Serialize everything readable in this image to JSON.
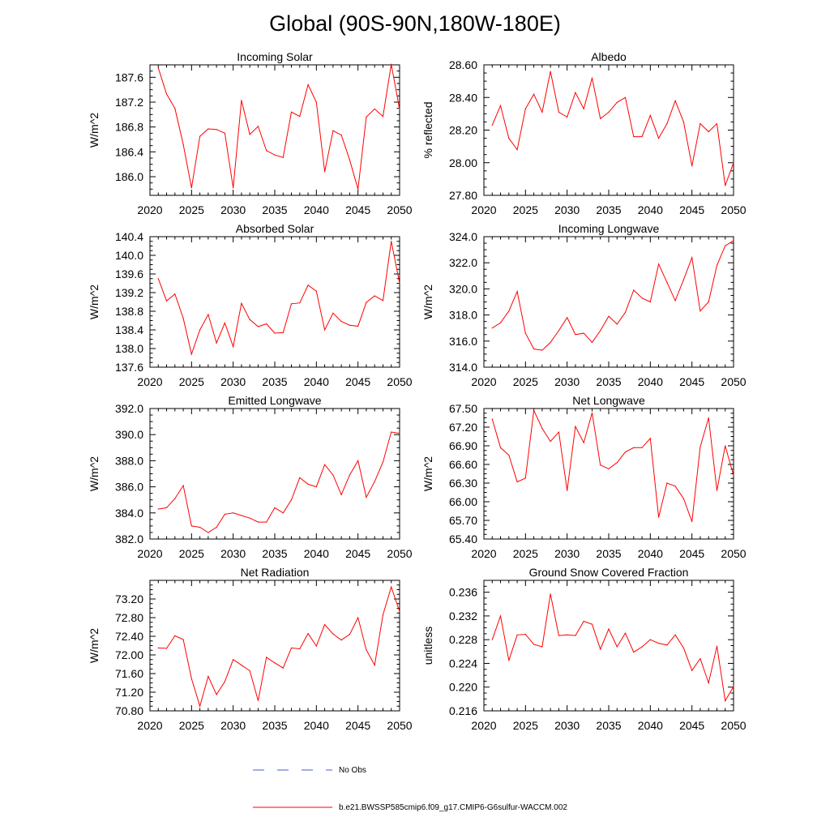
{
  "title": "Global (90S-90N,180W-180E)",
  "legend": {
    "obs_label": "No Obs",
    "obs_color": "#4a5bd6",
    "model_label": "b.e21.BWSSP585cmip6.f09_g17.CMIP6-G6sulfur-WACCM.002",
    "model_color": "#ff0000"
  },
  "chart_data": [
    {
      "type": "line",
      "title": "Incoming Solar",
      "ylabel": "W/m^2",
      "xlim": [
        2020,
        2050
      ],
      "ylim": [
        185.7,
        187.8
      ],
      "xticks": [
        "2020",
        "2025",
        "2030",
        "2035",
        "2040",
        "2045",
        "2050"
      ],
      "yticks": [
        "186.0",
        "186.4",
        "186.8",
        "187.2",
        "187.6"
      ],
      "grid": false,
      "series": [
        {
          "color": "#ff0000",
          "x": [
            2021,
            2022,
            2023,
            2024,
            2025,
            2026,
            2027,
            2028,
            2029,
            2030,
            2031,
            2032,
            2033,
            2034,
            2035,
            2036,
            2037,
            2038,
            2039,
            2040,
            2041,
            2042,
            2043,
            2044,
            2045,
            2046,
            2047,
            2048,
            2049,
            2050
          ],
          "values": [
            187.75,
            187.33,
            187.1,
            186.52,
            185.82,
            186.65,
            186.77,
            186.76,
            186.7,
            185.82,
            187.23,
            186.68,
            186.81,
            186.42,
            186.35,
            186.31,
            187.04,
            186.97,
            187.48,
            187.2,
            186.08,
            186.74,
            186.67,
            186.27,
            185.8,
            186.96,
            187.09,
            186.97,
            187.81,
            187.08
          ]
        }
      ]
    },
    {
      "type": "line",
      "title": "Albedo",
      "ylabel": "% reflected",
      "xlim": [
        2020,
        2050
      ],
      "ylim": [
        27.8,
        28.6
      ],
      "xticks": [
        "2020",
        "2025",
        "2030",
        "2035",
        "2040",
        "2045",
        "2050"
      ],
      "yticks": [
        "27.80",
        "28.00",
        "28.20",
        "28.40",
        "28.60"
      ],
      "grid": false,
      "series": [
        {
          "color": "#ff0000",
          "x": [
            2021,
            2022,
            2023,
            2024,
            2025,
            2026,
            2027,
            2028,
            2029,
            2030,
            2031,
            2032,
            2033,
            2034,
            2035,
            2036,
            2037,
            2038,
            2039,
            2040,
            2041,
            2042,
            2043,
            2044,
            2045,
            2046,
            2047,
            2048,
            2049,
            2050
          ],
          "values": [
            28.23,
            28.35,
            28.15,
            28.08,
            28.33,
            28.42,
            28.31,
            28.56,
            28.31,
            28.28,
            28.43,
            28.33,
            28.52,
            28.27,
            28.31,
            28.37,
            28.4,
            28.16,
            28.16,
            28.29,
            28.15,
            28.24,
            28.38,
            28.25,
            27.98,
            28.24,
            28.19,
            28.24,
            27.86,
            28.0
          ]
        }
      ]
    },
    {
      "type": "line",
      "title": "Absorbed Solar",
      "ylabel": "W/m^2",
      "xlim": [
        2020,
        2050
      ],
      "ylim": [
        137.6,
        140.4
      ],
      "xticks": [
        "2020",
        "2025",
        "2030",
        "2035",
        "2040",
        "2045",
        "2050"
      ],
      "yticks": [
        "137.6",
        "138.0",
        "138.4",
        "138.8",
        "139.2",
        "139.6",
        "140.0",
        "140.4"
      ],
      "grid": false,
      "series": [
        {
          "color": "#ff0000",
          "x": [
            2021,
            2022,
            2023,
            2024,
            2025,
            2026,
            2027,
            2028,
            2029,
            2030,
            2031,
            2032,
            2033,
            2034,
            2035,
            2036,
            2037,
            2038,
            2039,
            2040,
            2041,
            2042,
            2043,
            2044,
            2045,
            2046,
            2047,
            2048,
            2049,
            2050
          ],
          "values": [
            139.5,
            139.02,
            139.17,
            138.65,
            137.88,
            138.4,
            138.73,
            138.12,
            138.55,
            138.04,
            138.97,
            138.62,
            138.47,
            138.53,
            138.33,
            138.34,
            138.96,
            138.98,
            139.36,
            139.23,
            138.4,
            138.76,
            138.58,
            138.5,
            138.48,
            138.99,
            139.13,
            139.03,
            140.3,
            139.4
          ]
        }
      ]
    },
    {
      "type": "line",
      "title": "Incoming Longwave",
      "ylabel": "W/m^2",
      "xlim": [
        2020,
        2050
      ],
      "ylim": [
        314.0,
        324.0
      ],
      "xticks": [
        "2020",
        "2025",
        "2030",
        "2035",
        "2040",
        "2045",
        "2050"
      ],
      "yticks": [
        "314.0",
        "316.0",
        "318.0",
        "320.0",
        "322.0",
        "324.0"
      ],
      "grid": false,
      "series": [
        {
          "color": "#ff0000",
          "x": [
            2021,
            2022,
            2023,
            2024,
            2025,
            2026,
            2027,
            2028,
            2029,
            2030,
            2031,
            2032,
            2033,
            2034,
            2035,
            2036,
            2037,
            2038,
            2039,
            2040,
            2041,
            2042,
            2043,
            2044,
            2045,
            2046,
            2047,
            2048,
            2049,
            2050
          ],
          "values": [
            317.0,
            317.4,
            318.3,
            319.8,
            316.6,
            315.4,
            315.3,
            315.9,
            316.8,
            317.8,
            316.5,
            316.6,
            315.9,
            316.8,
            317.9,
            317.3,
            318.2,
            319.9,
            319.3,
            319.0,
            321.9,
            320.5,
            319.1,
            320.7,
            322.4,
            318.3,
            319.0,
            321.8,
            323.3,
            323.7
          ]
        }
      ]
    },
    {
      "type": "line",
      "title": "Emitted Longwave",
      "ylabel": "W/m^2",
      "xlim": [
        2020,
        2050
      ],
      "ylim": [
        382.0,
        392.0
      ],
      "xticks": [
        "2020",
        "2025",
        "2030",
        "2035",
        "2040",
        "2045",
        "2050"
      ],
      "yticks": [
        "382.0",
        "384.0",
        "386.0",
        "388.0",
        "390.0",
        "392.0"
      ],
      "grid": false,
      "series": [
        {
          "color": "#ff0000",
          "x": [
            2021,
            2022,
            2023,
            2024,
            2025,
            2026,
            2027,
            2028,
            2029,
            2030,
            2031,
            2032,
            2033,
            2034,
            2035,
            2036,
            2037,
            2038,
            2039,
            2040,
            2041,
            2042,
            2043,
            2044,
            2045,
            2046,
            2047,
            2048,
            2049,
            2050
          ],
          "values": [
            384.3,
            384.4,
            385.1,
            386.1,
            383.0,
            382.9,
            382.5,
            382.9,
            383.9,
            384.0,
            383.8,
            383.6,
            383.3,
            383.3,
            384.4,
            384.0,
            385.0,
            386.7,
            386.2,
            386.0,
            387.7,
            386.9,
            385.4,
            386.9,
            388.0,
            385.2,
            386.4,
            387.9,
            390.2,
            390.1
          ]
        }
      ]
    },
    {
      "type": "line",
      "title": "Net Longwave",
      "ylabel": "W/m^2",
      "xlim": [
        2020,
        2050
      ],
      "ylim": [
        65.4,
        67.5
      ],
      "xticks": [
        "2020",
        "2025",
        "2030",
        "2035",
        "2040",
        "2045",
        "2050"
      ],
      "yticks": [
        "65.40",
        "65.70",
        "66.00",
        "66.30",
        "66.60",
        "66.90",
        "67.20",
        "67.50"
      ],
      "grid": false,
      "series": [
        {
          "color": "#ff0000",
          "x": [
            2021,
            2022,
            2023,
            2024,
            2025,
            2026,
            2027,
            2028,
            2029,
            2030,
            2031,
            2032,
            2033,
            2034,
            2035,
            2036,
            2037,
            2038,
            2039,
            2040,
            2041,
            2042,
            2043,
            2044,
            2045,
            2046,
            2047,
            2048,
            2049,
            2050
          ],
          "values": [
            67.33,
            66.87,
            66.75,
            66.32,
            66.38,
            67.47,
            67.18,
            66.97,
            67.12,
            66.18,
            67.21,
            66.95,
            67.43,
            66.59,
            66.53,
            66.63,
            66.8,
            66.87,
            66.87,
            67.02,
            65.75,
            66.3,
            66.25,
            66.05,
            65.68,
            66.88,
            67.35,
            66.18,
            66.9,
            66.42
          ]
        }
      ]
    },
    {
      "type": "line",
      "title": "Net Radiation",
      "ylabel": "W/m^2",
      "xlim": [
        2020,
        2050
      ],
      "ylim": [
        70.8,
        73.6
      ],
      "xticks": [
        "2020",
        "2025",
        "2030",
        "2035",
        "2040",
        "2045",
        "2050"
      ],
      "yticks": [
        "70.80",
        "71.20",
        "71.60",
        "72.00",
        "72.40",
        "72.80",
        "73.20"
      ],
      "grid": false,
      "series": [
        {
          "color": "#ff0000",
          "x": [
            2021,
            2022,
            2023,
            2024,
            2025,
            2026,
            2027,
            2028,
            2029,
            2030,
            2031,
            2032,
            2033,
            2034,
            2035,
            2036,
            2037,
            2038,
            2039,
            2040,
            2041,
            2042,
            2043,
            2044,
            2045,
            2046,
            2047,
            2048,
            2049,
            2050
          ],
          "values": [
            72.15,
            72.14,
            72.41,
            72.33,
            71.49,
            70.9,
            71.54,
            71.15,
            71.43,
            71.9,
            71.78,
            71.66,
            71.02,
            71.95,
            71.83,
            71.72,
            72.15,
            72.13,
            72.46,
            72.19,
            72.65,
            72.45,
            72.32,
            72.44,
            72.8,
            72.11,
            71.78,
            72.86,
            73.46,
            72.93
          ]
        }
      ]
    },
    {
      "type": "line",
      "title": "Ground Snow Covered Fraction",
      "ylabel": "unitless",
      "xlim": [
        2020,
        2050
      ],
      "ylim": [
        0.216,
        0.238
      ],
      "xticks": [
        "2020",
        "2025",
        "2030",
        "2035",
        "2040",
        "2045",
        "2050"
      ],
      "yticks": [
        "0.216",
        "0.220",
        "0.224",
        "0.228",
        "0.232",
        "0.236"
      ],
      "grid": false,
      "series": [
        {
          "color": "#ff0000",
          "x": [
            2021,
            2022,
            2023,
            2024,
            2025,
            2026,
            2027,
            2028,
            2029,
            2030,
            2031,
            2032,
            2033,
            2034,
            2035,
            2036,
            2037,
            2038,
            2039,
            2040,
            2041,
            2042,
            2043,
            2044,
            2045,
            2046,
            2047,
            2048,
            2049,
            2050
          ],
          "values": [
            0.228,
            0.232,
            0.2245,
            0.2288,
            0.2289,
            0.2272,
            0.2268,
            0.2357,
            0.2287,
            0.2288,
            0.2287,
            0.2311,
            0.2306,
            0.2264,
            0.2298,
            0.2268,
            0.2291,
            0.2259,
            0.2268,
            0.228,
            0.2274,
            0.2271,
            0.2288,
            0.2266,
            0.2228,
            0.2248,
            0.2207,
            0.2269,
            0.2177,
            0.2201
          ]
        }
      ]
    }
  ]
}
